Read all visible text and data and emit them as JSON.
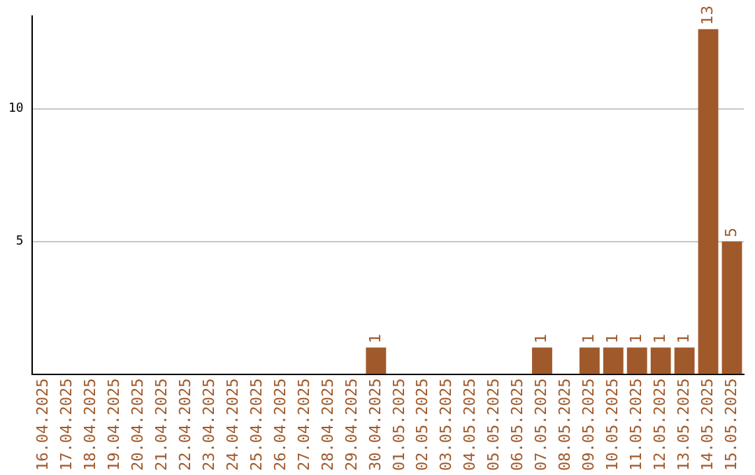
{
  "chart_data": {
    "type": "bar",
    "categories": [
      "16.04.2025",
      "17.04.2025",
      "18.04.2025",
      "19.04.2025",
      "20.04.2025",
      "21.04.2025",
      "22.04.2025",
      "23.04.2025",
      "24.04.2025",
      "25.04.2025",
      "26.04.2025",
      "27.04.2025",
      "28.04.2025",
      "29.04.2025",
      "30.04.2025",
      "01.05.2025",
      "02.05.2025",
      "03.05.2025",
      "04.05.2025",
      "05.05.2025",
      "06.05.2025",
      "07.05.2025",
      "08.05.2025",
      "09.05.2025",
      "10.05.2025",
      "11.05.2025",
      "12.05.2025",
      "13.05.2025",
      "14.05.2025",
      "15.05.2025"
    ],
    "values": [
      0,
      0,
      0,
      0,
      0,
      0,
      0,
      0,
      0,
      0,
      0,
      0,
      0,
      0,
      1,
      0,
      0,
      0,
      0,
      0,
      0,
      1,
      0,
      1,
      1,
      1,
      1,
      1,
      13,
      5
    ],
    "value_labels": [
      null,
      null,
      null,
      null,
      null,
      null,
      null,
      null,
      null,
      null,
      null,
      null,
      null,
      null,
      "1",
      null,
      null,
      null,
      null,
      null,
      null,
      "1",
      null,
      "1",
      "1",
      "1",
      "1",
      "1",
      "13",
      "5"
    ],
    "color": "#a0592a",
    "ylim": [
      0,
      13.5
    ],
    "yticks": [
      5,
      10
    ],
    "grid": "y",
    "legend": false
  }
}
